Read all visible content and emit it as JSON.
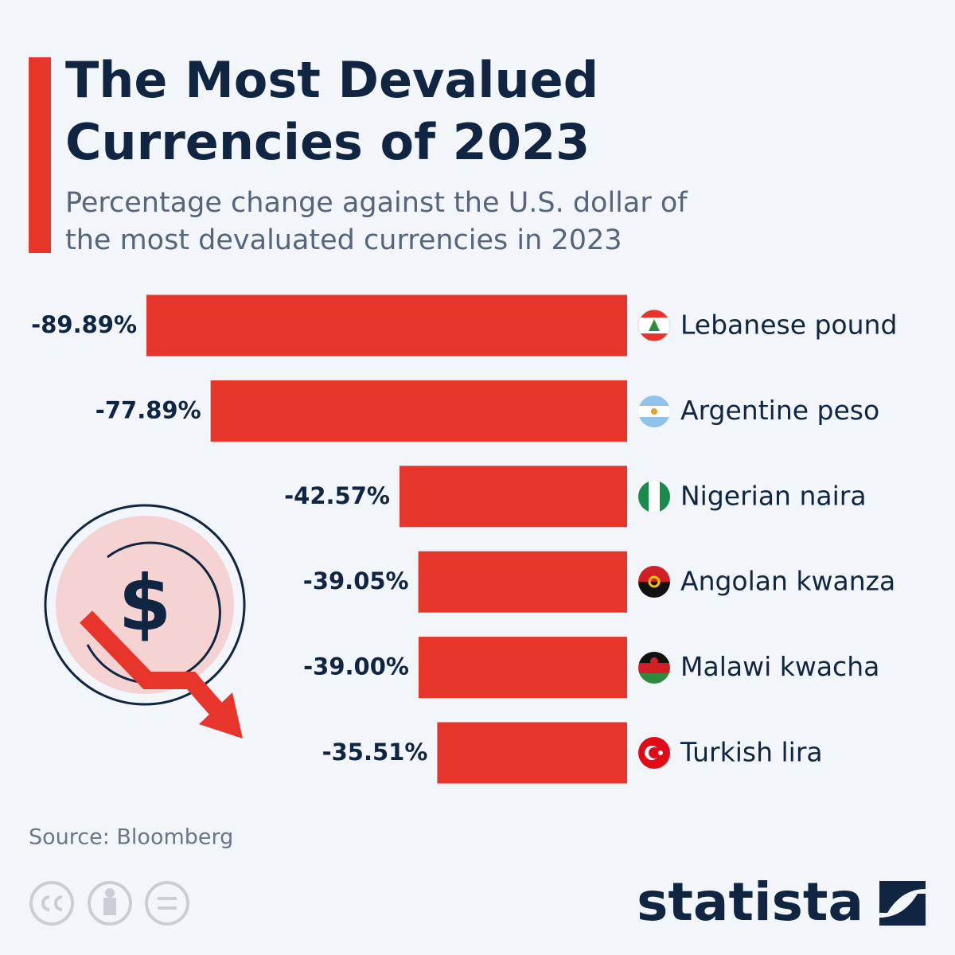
{
  "chart_data": {
    "type": "bar",
    "title": "The Most Devalued Currencies of 2023",
    "subtitle": "Percentage change against the U.S. dollar of the most devaluated currencies in 2023",
    "categories": [
      "Lebanese pound",
      "Argentine peso",
      "Nigerian naira",
      "Angolan kwanza",
      "Malawi kwacha",
      "Turkish lira"
    ],
    "values": [
      -89.89,
      -77.89,
      -42.57,
      -39.05,
      -39.0,
      -35.51
    ],
    "value_labels": [
      "-89.89%",
      "-77.89%",
      "-42.57%",
      "-39.05%",
      "-39.00%",
      "-35.51%"
    ],
    "color": "#e8352b",
    "source": "Source: Bloomberg"
  },
  "icon_symbol": "$",
  "brand": "statista"
}
